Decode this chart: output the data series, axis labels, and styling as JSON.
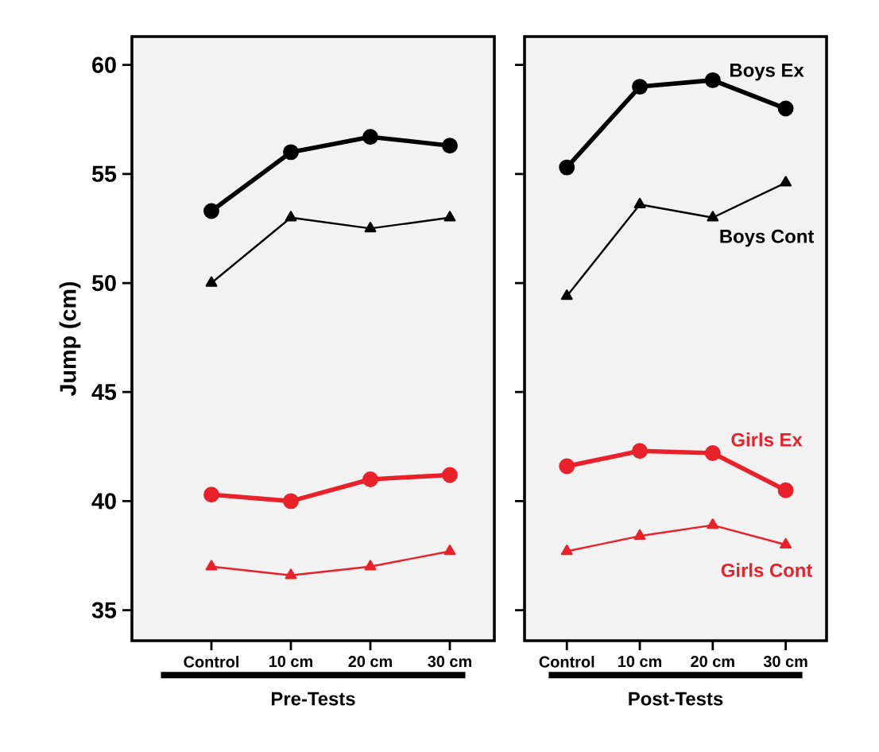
{
  "chart_data": [
    {
      "type": "line",
      "xlabel": "Pre-Tests",
      "ylabel": "Jump (cm)",
      "categories": [
        "Control",
        "10 cm",
        "20 cm",
        "30 cm"
      ],
      "ylim": [
        33.6,
        61.3
      ],
      "yticks": [
        35,
        40,
        45,
        50,
        55,
        60
      ],
      "series": [
        {
          "color": "#000000",
          "marker": "circle",
          "values": [
            53.3,
            56.0,
            56.7,
            56.3
          ]
        },
        {
          "color": "#000000",
          "marker": "triangle",
          "values": [
            50.0,
            53.0,
            52.5,
            53.0
          ]
        },
        {
          "color": "#e8212a",
          "marker": "circle",
          "values": [
            40.3,
            40.0,
            41.0,
            41.2
          ]
        },
        {
          "color": "#e8212a",
          "marker": "triangle",
          "values": [
            37.0,
            36.6,
            37.0,
            37.7
          ]
        }
      ]
    },
    {
      "type": "line",
      "xlabel": "Post-Tests",
      "categories": [
        "Control",
        "10 cm",
        "20 cm",
        "30 cm"
      ],
      "ylim": [
        33.6,
        61.3
      ],
      "yticks": [
        35,
        40,
        45,
        50,
        55,
        60
      ],
      "tick_labels": "x",
      "series": [
        {
          "name": "Boys Ex",
          "color": "#000000",
          "marker": "circle",
          "values": [
            55.3,
            59.0,
            59.3,
            58.0
          ]
        },
        {
          "name": "Boys Cont",
          "color": "#000000",
          "marker": "triangle",
          "values": [
            49.4,
            53.6,
            53.0,
            54.6
          ]
        },
        {
          "name": "Girls Ex",
          "color": "#e8212a",
          "marker": "circle",
          "values": [
            41.6,
            42.3,
            42.2,
            40.5
          ]
        },
        {
          "name": "Girls Cont",
          "color": "#e8212a",
          "marker": "triangle",
          "values": [
            37.7,
            38.4,
            38.9,
            38.0
          ]
        }
      ]
    }
  ]
}
